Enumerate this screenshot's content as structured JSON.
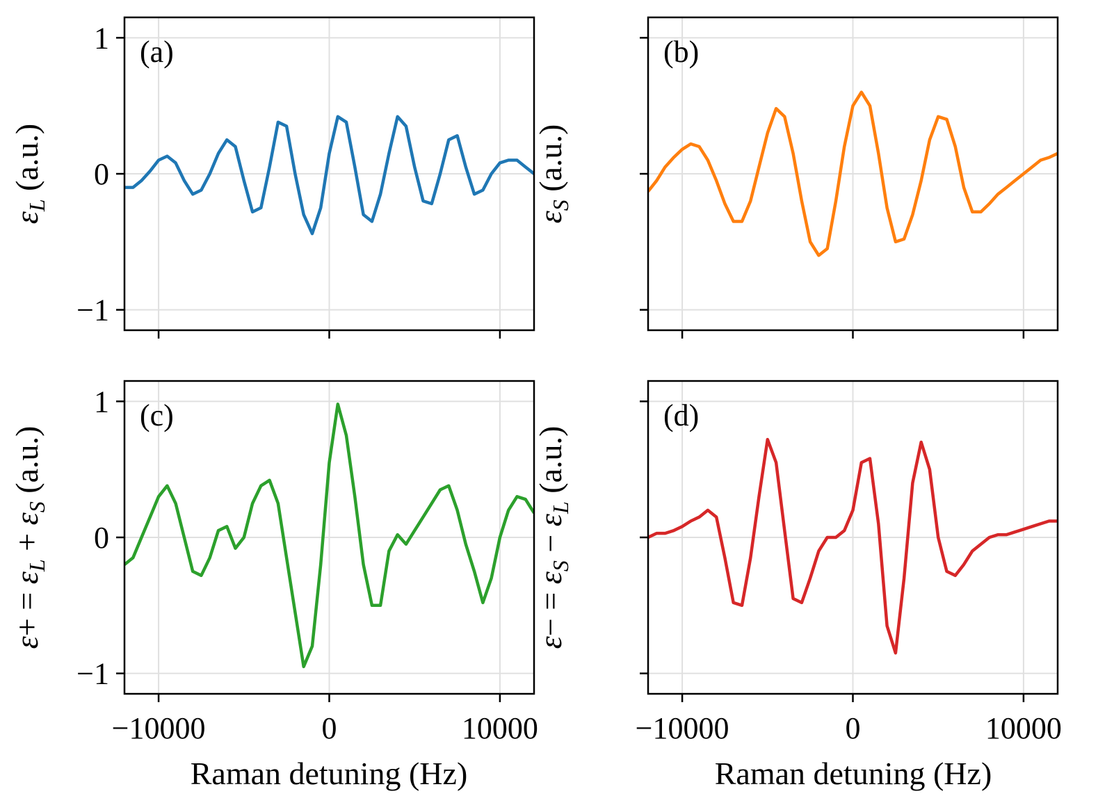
{
  "figure": {
    "xlabel": "Raman detuning (Hz)"
  },
  "chart_data": [
    {
      "type": "line",
      "panel_label": "(a)",
      "color": "#1f77b4",
      "ylabel_sym": "ε",
      "ylabel_sub": "L",
      "ylabel_unit": " (a.u.)",
      "xlim": [
        -12000,
        12000
      ],
      "ylim": [
        -1.15,
        1.15
      ],
      "xticks": [
        -10000,
        0,
        10000
      ],
      "xtick_labels": [
        "",
        "",
        ""
      ],
      "yticks": [
        1,
        0,
        -1
      ],
      "ytick_labels": [
        "1",
        "0",
        "−1"
      ],
      "grid": true,
      "x": [
        -12000,
        -11500,
        -11000,
        -10500,
        -10000,
        -9500,
        -9000,
        -8500,
        -8000,
        -7500,
        -7000,
        -6500,
        -6000,
        -5500,
        -5000,
        -4500,
        -4000,
        -3500,
        -3000,
        -2500,
        -2000,
        -1500,
        -1000,
        -500,
        0,
        500,
        1000,
        1500,
        2000,
        2500,
        3000,
        3500,
        4000,
        4500,
        5000,
        5500,
        6000,
        6500,
        7000,
        7500,
        8000,
        8500,
        9000,
        9500,
        10000,
        10500,
        11000,
        11500,
        12000
      ],
      "y": [
        -0.1,
        -0.1,
        -0.05,
        0.02,
        0.1,
        0.13,
        0.08,
        -0.05,
        -0.15,
        -0.12,
        0.0,
        0.15,
        0.25,
        0.2,
        -0.05,
        -0.28,
        -0.25,
        0.05,
        0.38,
        0.35,
        0.0,
        -0.3,
        -0.44,
        -0.25,
        0.15,
        0.42,
        0.38,
        0.05,
        -0.3,
        -0.35,
        -0.15,
        0.15,
        0.42,
        0.35,
        0.05,
        -0.2,
        -0.22,
        0.0,
        0.25,
        0.28,
        0.05,
        -0.15,
        -0.12,
        0.0,
        0.08,
        0.1,
        0.1,
        0.05,
        0.0
      ]
    },
    {
      "type": "line",
      "panel_label": "(b)",
      "color": "#ff7f0e",
      "ylabel_sym": "ε",
      "ylabel_sub": "S",
      "ylabel_unit": " (a.u.)",
      "xlim": [
        -12000,
        12000
      ],
      "ylim": [
        -1.15,
        1.15
      ],
      "xticks": [
        -10000,
        0,
        10000
      ],
      "xtick_labels": [
        "",
        "",
        ""
      ],
      "yticks": [
        1,
        0,
        -1
      ],
      "ytick_labels": [
        "",
        "",
        ""
      ],
      "grid": true,
      "x": [
        -12000,
        -11500,
        -11000,
        -10500,
        -10000,
        -9500,
        -9000,
        -8500,
        -8000,
        -7500,
        -7000,
        -6500,
        -6000,
        -5500,
        -5000,
        -4500,
        -4000,
        -3500,
        -3000,
        -2500,
        -2000,
        -1500,
        -1000,
        -500,
        0,
        500,
        1000,
        1500,
        2000,
        2500,
        3000,
        3500,
        4000,
        4500,
        5000,
        5500,
        6000,
        6500,
        7000,
        7500,
        8000,
        8500,
        9000,
        9500,
        10000,
        10500,
        11000,
        11500,
        12000
      ],
      "y": [
        -0.13,
        -0.05,
        0.05,
        0.12,
        0.18,
        0.22,
        0.2,
        0.1,
        -0.05,
        -0.22,
        -0.35,
        -0.35,
        -0.2,
        0.05,
        0.3,
        0.48,
        0.42,
        0.15,
        -0.2,
        -0.5,
        -0.6,
        -0.55,
        -0.2,
        0.2,
        0.5,
        0.6,
        0.5,
        0.15,
        -0.25,
        -0.5,
        -0.48,
        -0.3,
        -0.05,
        0.25,
        0.42,
        0.4,
        0.2,
        -0.1,
        -0.28,
        -0.28,
        -0.22,
        -0.15,
        -0.1,
        -0.05,
        0.0,
        0.05,
        0.1,
        0.12,
        0.15
      ]
    },
    {
      "type": "line",
      "panel_label": "(c)",
      "color": "#2ca02c",
      "ylabel_sym": "ε",
      "ylabel_rest": "+ = ",
      "ylabel_sym2": "ε",
      "ylabel_sub2": "L",
      "ylabel_mid": " + ",
      "ylabel_sym3": "ε",
      "ylabel_sub3": "S",
      "ylabel_unit": " (a.u.)",
      "xlim": [
        -12000,
        12000
      ],
      "ylim": [
        -1.15,
        1.15
      ],
      "xticks": [
        -10000,
        0,
        10000
      ],
      "xtick_labels": [
        "−10000",
        "0",
        "10000"
      ],
      "yticks": [
        1,
        0,
        -1
      ],
      "ytick_labels": [
        "1",
        "0",
        "−1"
      ],
      "grid": true,
      "x": [
        -12000,
        -11500,
        -11000,
        -10500,
        -10000,
        -9500,
        -9000,
        -8500,
        -8000,
        -7500,
        -7000,
        -6500,
        -6000,
        -5500,
        -5000,
        -4500,
        -4000,
        -3500,
        -3000,
        -2500,
        -2000,
        -1500,
        -1000,
        -500,
        0,
        500,
        1000,
        1500,
        2000,
        2500,
        3000,
        3500,
        4000,
        4500,
        5000,
        5500,
        6000,
        6500,
        7000,
        7500,
        8000,
        8500,
        9000,
        9500,
        10000,
        10500,
        11000,
        11500,
        12000
      ],
      "y": [
        -0.2,
        -0.15,
        0.0,
        0.15,
        0.3,
        0.38,
        0.25,
        0.0,
        -0.25,
        -0.28,
        -0.15,
        0.05,
        0.08,
        -0.08,
        0.0,
        0.25,
        0.38,
        0.42,
        0.25,
        -0.15,
        -0.55,
        -0.95,
        -0.8,
        -0.2,
        0.55,
        0.98,
        0.75,
        0.3,
        -0.2,
        -0.5,
        -0.5,
        -0.1,
        0.02,
        -0.05,
        0.05,
        0.15,
        0.25,
        0.35,
        0.38,
        0.2,
        -0.05,
        -0.25,
        -0.48,
        -0.3,
        0.0,
        0.2,
        0.3,
        0.28,
        0.18
      ]
    },
    {
      "type": "line",
      "panel_label": "(d)",
      "color": "#d62728",
      "ylabel_sym": "ε",
      "ylabel_rest": "− = ",
      "ylabel_sym2": "ε",
      "ylabel_sub2": "S",
      "ylabel_mid": " − ",
      "ylabel_sym3": "ε",
      "ylabel_sub3": "L",
      "ylabel_unit": " (a.u.)",
      "xlim": [
        -12000,
        12000
      ],
      "ylim": [
        -1.15,
        1.15
      ],
      "xticks": [
        -10000,
        0,
        10000
      ],
      "xtick_labels": [
        "−10000",
        "0",
        "10000"
      ],
      "yticks": [
        1,
        0,
        -1
      ],
      "ytick_labels": [
        "",
        "",
        ""
      ],
      "grid": true,
      "x": [
        -12000,
        -11500,
        -11000,
        -10500,
        -10000,
        -9500,
        -9000,
        -8500,
        -8000,
        -7500,
        -7000,
        -6500,
        -6000,
        -5500,
        -5000,
        -4500,
        -4000,
        -3500,
        -3000,
        -2500,
        -2000,
        -1500,
        -1000,
        -500,
        0,
        500,
        1000,
        1500,
        2000,
        2500,
        3000,
        3500,
        4000,
        4500,
        5000,
        5500,
        6000,
        6500,
        7000,
        7500,
        8000,
        8500,
        9000,
        9500,
        10000,
        10500,
        11000,
        11500,
        12000
      ],
      "y": [
        0.0,
        0.03,
        0.03,
        0.05,
        0.08,
        0.12,
        0.15,
        0.2,
        0.15,
        -0.15,
        -0.48,
        -0.5,
        -0.15,
        0.3,
        0.72,
        0.55,
        0.05,
        -0.45,
        -0.48,
        -0.3,
        -0.1,
        0.0,
        0.0,
        0.05,
        0.2,
        0.55,
        0.58,
        0.1,
        -0.65,
        -0.85,
        -0.3,
        0.4,
        0.7,
        0.5,
        0.0,
        -0.25,
        -0.28,
        -0.2,
        -0.1,
        -0.05,
        0.0,
        0.02,
        0.02,
        0.04,
        0.06,
        0.08,
        0.1,
        0.12,
        0.12
      ]
    }
  ]
}
